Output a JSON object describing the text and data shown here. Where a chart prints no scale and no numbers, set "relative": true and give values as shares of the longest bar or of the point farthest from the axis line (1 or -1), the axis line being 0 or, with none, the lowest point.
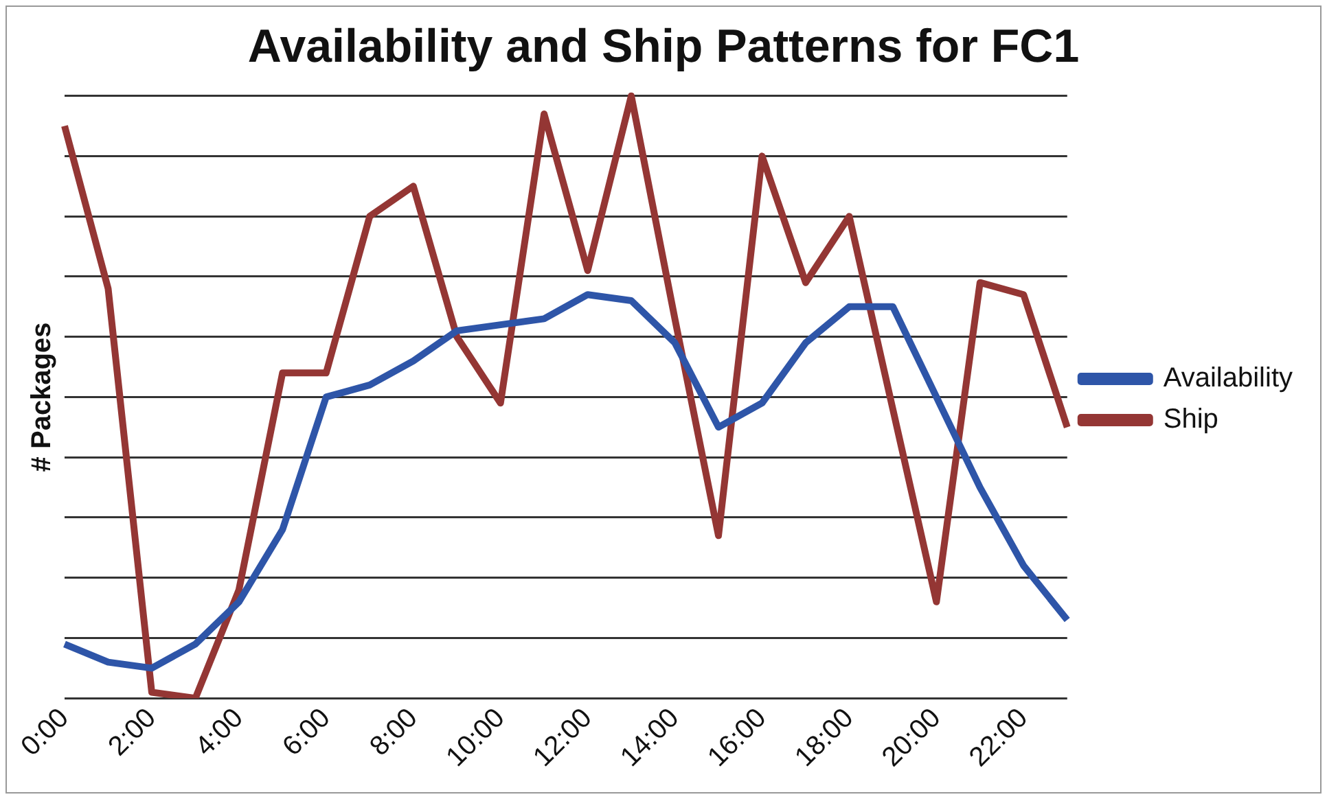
{
  "chart_data": {
    "type": "line",
    "title": "Availability and Ship Patterns for FC1",
    "ylabel": "# Packages",
    "relative": true,
    "grid": "y",
    "legend": "right",
    "marker": "none",
    "categories": [
      "0:00",
      null,
      "2:00",
      null,
      "4:00",
      null,
      "6:00",
      null,
      "8:00",
      null,
      "10:00",
      null,
      "12:00",
      null,
      "14:00",
      null,
      "16:00",
      null,
      "18:00",
      null,
      "20:00",
      null,
      "22:00",
      null
    ],
    "series": [
      {
        "name": "Availability",
        "color": "#2e55a8",
        "values": [
          0.09,
          0.06,
          0.05,
          0.09,
          0.16,
          0.28,
          0.5,
          0.52,
          0.56,
          0.61,
          0.62,
          0.63,
          0.67,
          0.66,
          0.59,
          0.45,
          0.49,
          0.59,
          0.65,
          0.65,
          0.5,
          0.35,
          0.22,
          0.13
        ]
      },
      {
        "name": "Ship",
        "color": "#943634",
        "values": [
          0.95,
          0.68,
          0.01,
          0,
          0.18,
          0.54,
          0.54,
          0.8,
          0.85,
          0.6,
          0.49,
          0.97,
          0.71,
          1,
          0.63,
          0.27,
          0.9,
          0.69,
          0.8,
          0.48,
          0.16,
          0.69,
          0.67,
          0.45
        ]
      }
    ]
  }
}
